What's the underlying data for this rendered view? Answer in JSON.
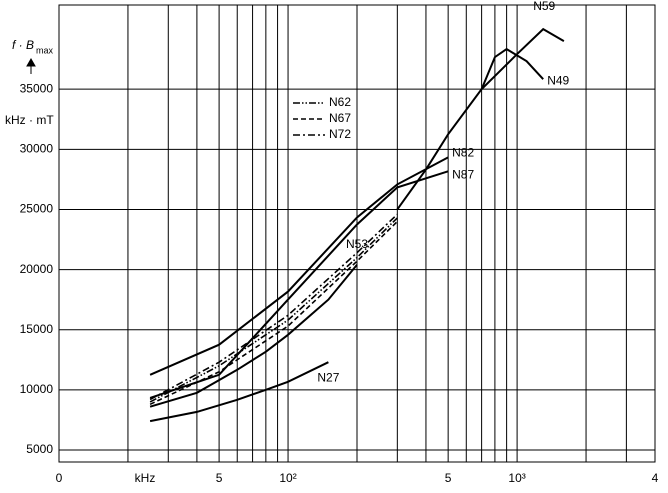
{
  "chart_data": {
    "type": "line",
    "ylabel": "f · B",
    "ylabel_sub": "max",
    "yunit": "kHz · mT",
    "xlabel": "kHz",
    "xscale": "log",
    "xlim": [
      10,
      4000
    ],
    "ylim": [
      4000,
      42000
    ],
    "xticks": [
      {
        "value": 10,
        "label": "0"
      },
      {
        "value": 50,
        "label": "5"
      },
      {
        "value": 100,
        "label": "10²"
      },
      {
        "value": 500,
        "label": "5"
      },
      {
        "value": 1000,
        "label": "10³"
      },
      {
        "value": 4000,
        "label": "4"
      }
    ],
    "xgrid": [
      20,
      30,
      40,
      60,
      70,
      80,
      90,
      200,
      300,
      400,
      600,
      700,
      800,
      900,
      2000,
      3000
    ],
    "yticks": [
      5000,
      10000,
      15000,
      20000,
      25000,
      30000,
      35000
    ],
    "grid": true,
    "series": [
      {
        "name": "N27",
        "color": "#000000",
        "style": "solid",
        "x": [
          25,
          40,
          60,
          80,
          100,
          150
        ],
        "values": [
          7400,
          8170,
          9170,
          10000,
          10670,
          12300
        ]
      },
      {
        "name": "N53",
        "color": "#000000",
        "style": "solid",
        "x": [
          25,
          40,
          60,
          80,
          100,
          150,
          200
        ],
        "values": [
          8600,
          9750,
          11670,
          13170,
          14580,
          17500,
          20400
        ]
      },
      {
        "name": "N87",
        "color": "#000000",
        "style": "solid",
        "x": [
          25,
          50,
          100,
          200,
          300,
          500
        ],
        "values": [
          9330,
          11250,
          17500,
          23750,
          26830,
          28170
        ]
      },
      {
        "name": "N82",
        "color": "#000000",
        "style": "solid",
        "x": [
          25,
          50,
          100,
          200,
          300,
          500
        ],
        "values": [
          11250,
          13750,
          18170,
          24330,
          27080,
          29330
        ]
      },
      {
        "name": "N59",
        "color": "#000000",
        "style": "solid",
        "x": [
          300,
          400,
          500,
          700,
          1000,
          1300,
          1600
        ],
        "values": [
          25000,
          28330,
          31250,
          35000,
          37920,
          40000,
          39000
        ]
      },
      {
        "name": "N49",
        "color": "#000000",
        "style": "solid",
        "x": [
          700,
          800,
          900,
          1100,
          1300
        ],
        "values": [
          35000,
          37670,
          38330,
          37330,
          35830
        ]
      },
      {
        "name": "N62",
        "color": "#000000",
        "style": "dash-dot-dot",
        "x": [
          25,
          50,
          100,
          200,
          300
        ],
        "values": [
          9000,
          12000,
          15800,
          21000,
          24300
        ]
      },
      {
        "name": "N67",
        "color": "#000000",
        "style": "dashed",
        "x": [
          25,
          50,
          100,
          200,
          300
        ],
        "values": [
          8800,
          11500,
          15300,
          20700,
          24000
        ]
      },
      {
        "name": "N72",
        "color": "#000000",
        "style": "dash-dot",
        "x": [
          25,
          50,
          100,
          200,
          300
        ],
        "values": [
          9200,
          12300,
          16200,
          21400,
          24600
        ]
      }
    ]
  }
}
